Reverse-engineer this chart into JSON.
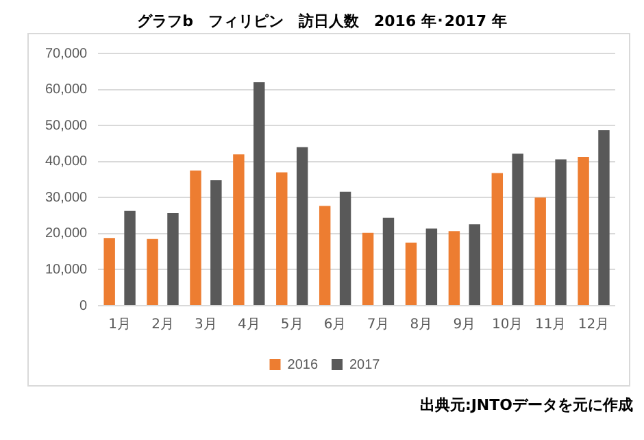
{
  "chart_data": {
    "type": "bar",
    "title": "グラフb　フィリピン　訪日人数　2016 年･2017 年",
    "categories": [
      "1月",
      "2月",
      "3月",
      "4月",
      "5月",
      "6月",
      "7月",
      "8月",
      "9月",
      "10月",
      "11月",
      "12月"
    ],
    "series": [
      {
        "name": "2016",
        "color": "#ed7d31",
        "values": [
          18800,
          18500,
          37500,
          42000,
          37000,
          27700,
          20200,
          17500,
          20700,
          36800,
          30000,
          41300
        ]
      },
      {
        "name": "2017",
        "color": "#595959",
        "values": [
          26300,
          25700,
          34800,
          62000,
          44000,
          31600,
          24400,
          21400,
          22600,
          42200,
          40600,
          48700
        ]
      }
    ],
    "ylim": [
      0,
      70000
    ],
    "yticks": [
      0,
      {
        "value": 10000,
        "label": "10,000"
      },
      {
        "value": 20000,
        "label": "20,000"
      },
      {
        "value": 30000,
        "label": "30,000"
      },
      {
        "value": 40000,
        "label": "40,000"
      },
      {
        "value": 50000,
        "label": "50,000"
      },
      {
        "value": 60000,
        "label": "60,000"
      },
      {
        "value": 70000,
        "label": "70,000"
      }
    ],
    "grid": "y",
    "legend": "bottom",
    "annotations": [
      "出典元:JNTOデータを元に作成"
    ]
  }
}
